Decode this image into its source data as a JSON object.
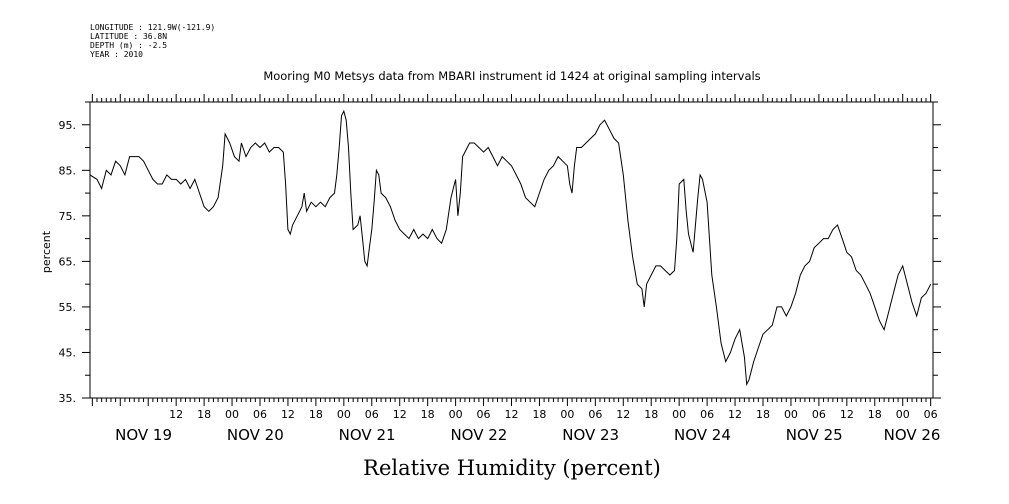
{
  "meta": {
    "longitude": "LONGITUDE : 121.9W(-121.9)",
    "latitude": "LATITUDE : 36.8N",
    "depth": "DEPTH (m) : -2.5",
    "year": "YEAR : 2010"
  },
  "chart_data": {
    "type": "line",
    "title": "Mooring M0 Metsys data from MBARI instrument id 1424 at original sampling intervals",
    "xlabel": "Relative Humidity (percent)",
    "ylabel": "percent",
    "ylim": [
      35,
      100
    ],
    "yticks": [
      35,
      45,
      55,
      65,
      75,
      85,
      95
    ],
    "ytick_labels": [
      "35.",
      "45.",
      "55.",
      "65.",
      "75.",
      "85.",
      "95."
    ],
    "x_unit": "hours since Nov 19 00:00, 2010",
    "xlim": [
      -6.5,
      174.5
    ],
    "hour_ticks": [
      {
        "x": 12,
        "label": "12"
      },
      {
        "x": 18,
        "label": "18"
      },
      {
        "x": 24,
        "label": "00"
      },
      {
        "x": 30,
        "label": "06"
      },
      {
        "x": 36,
        "label": "12"
      },
      {
        "x": 42,
        "label": "18"
      },
      {
        "x": 48,
        "label": "00"
      },
      {
        "x": 54,
        "label": "06"
      },
      {
        "x": 60,
        "label": "12"
      },
      {
        "x": 66,
        "label": "18"
      },
      {
        "x": 72,
        "label": "00"
      },
      {
        "x": 78,
        "label": "06"
      },
      {
        "x": 84,
        "label": "12"
      },
      {
        "x": 90,
        "label": "18"
      },
      {
        "x": 96,
        "label": "00"
      },
      {
        "x": 102,
        "label": "06"
      },
      {
        "x": 108,
        "label": "12"
      },
      {
        "x": 114,
        "label": "18"
      },
      {
        "x": 120,
        "label": "00"
      },
      {
        "x": 126,
        "label": "06"
      },
      {
        "x": 132,
        "label": "12"
      },
      {
        "x": 138,
        "label": "18"
      },
      {
        "x": 144,
        "label": "00"
      },
      {
        "x": 150,
        "label": "06"
      },
      {
        "x": 156,
        "label": "12"
      },
      {
        "x": 162,
        "label": "18"
      },
      {
        "x": 168,
        "label": "00"
      },
      {
        "x": 174,
        "label": "06"
      }
    ],
    "day_labels": [
      {
        "x": 5,
        "label": "NOV 19"
      },
      {
        "x": 29,
        "label": "NOV 20"
      },
      {
        "x": 53,
        "label": "NOV 21"
      },
      {
        "x": 77,
        "label": "NOV 22"
      },
      {
        "x": 101,
        "label": "NOV 23"
      },
      {
        "x": 125,
        "label": "NOV 24"
      },
      {
        "x": 149,
        "label": "NOV 25"
      },
      {
        "x": 170,
        "label": "NOV 26"
      }
    ],
    "series": [
      {
        "color": "#000000",
        "points": [
          [
            -6.5,
            84
          ],
          [
            -5,
            83
          ],
          [
            -4,
            81
          ],
          [
            -3,
            85
          ],
          [
            -2,
            84
          ],
          [
            -1,
            87
          ],
          [
            0,
            86
          ],
          [
            1,
            84
          ],
          [
            2,
            88
          ],
          [
            3,
            88
          ],
          [
            4,
            88
          ],
          [
            5,
            87
          ],
          [
            6,
            85
          ],
          [
            7,
            83
          ],
          [
            8,
            82
          ],
          [
            9,
            82
          ],
          [
            10,
            84
          ],
          [
            11,
            83
          ],
          [
            12,
            83
          ],
          [
            13,
            82
          ],
          [
            14,
            83
          ],
          [
            15,
            81
          ],
          [
            16,
            83
          ],
          [
            17,
            80
          ],
          [
            18,
            77
          ],
          [
            19,
            76
          ],
          [
            20,
            77
          ],
          [
            21,
            79
          ],
          [
            22,
            86
          ],
          [
            22.5,
            93
          ],
          [
            23.5,
            91
          ],
          [
            24.5,
            88
          ],
          [
            25.5,
            87
          ],
          [
            26,
            91
          ],
          [
            27,
            88
          ],
          [
            28,
            90
          ],
          [
            29,
            91
          ],
          [
            30,
            90
          ],
          [
            31,
            91
          ],
          [
            32,
            89
          ],
          [
            33,
            90
          ],
          [
            34,
            90
          ],
          [
            35,
            89
          ],
          [
            35.5,
            82
          ],
          [
            36,
            72
          ],
          [
            36.5,
            71
          ],
          [
            37,
            73
          ],
          [
            38,
            75
          ],
          [
            39,
            77
          ],
          [
            39.5,
            80
          ],
          [
            40,
            76
          ],
          [
            41,
            78
          ],
          [
            42,
            77
          ],
          [
            43,
            78
          ],
          [
            44,
            77
          ],
          [
            45,
            79
          ],
          [
            46,
            80
          ],
          [
            46.5,
            84
          ],
          [
            47,
            90
          ],
          [
            47.5,
            97
          ],
          [
            48,
            98
          ],
          [
            48.5,
            96
          ],
          [
            49,
            90
          ],
          [
            49.5,
            80
          ],
          [
            50,
            72
          ],
          [
            51,
            73
          ],
          [
            51.5,
            75
          ],
          [
            52,
            70
          ],
          [
            52.5,
            65
          ],
          [
            53,
            64
          ],
          [
            53.5,
            68
          ],
          [
            54,
            72
          ],
          [
            54.5,
            78
          ],
          [
            55,
            85
          ],
          [
            55.5,
            84
          ],
          [
            56,
            80
          ],
          [
            57,
            79
          ],
          [
            58,
            77
          ],
          [
            59,
            74
          ],
          [
            60,
            72
          ],
          [
            61,
            71
          ],
          [
            62,
            70
          ],
          [
            63,
            72
          ],
          [
            64,
            70
          ],
          [
            65,
            71
          ],
          [
            66,
            70
          ],
          [
            67,
            72
          ],
          [
            68,
            70
          ],
          [
            69,
            69
          ],
          [
            70,
            72
          ],
          [
            71,
            79
          ],
          [
            72,
            83
          ],
          [
            72.5,
            75
          ],
          [
            73,
            80
          ],
          [
            73.5,
            88
          ],
          [
            74,
            89
          ],
          [
            75,
            91
          ],
          [
            76,
            91
          ],
          [
            77,
            90
          ],
          [
            78,
            89
          ],
          [
            79,
            90
          ],
          [
            80,
            88
          ],
          [
            81,
            86
          ],
          [
            82,
            88
          ],
          [
            83,
            87
          ],
          [
            84,
            86
          ],
          [
            85,
            84
          ],
          [
            86,
            82
          ],
          [
            87,
            79
          ],
          [
            88,
            78
          ],
          [
            89,
            77
          ],
          [
            90,
            80
          ],
          [
            91,
            83
          ],
          [
            92,
            85
          ],
          [
            93,
            86
          ],
          [
            94,
            88
          ],
          [
            95,
            87
          ],
          [
            96,
            86
          ],
          [
            96.5,
            82
          ],
          [
            97,
            80
          ],
          [
            97.5,
            86
          ],
          [
            98,
            90
          ],
          [
            99,
            90
          ],
          [
            100,
            91
          ],
          [
            101,
            92
          ],
          [
            102,
            93
          ],
          [
            103,
            95
          ],
          [
            104,
            96
          ],
          [
            105,
            94
          ],
          [
            106,
            92
          ],
          [
            107,
            91
          ],
          [
            108,
            84
          ],
          [
            109,
            74
          ],
          [
            110,
            66
          ],
          [
            111,
            60
          ],
          [
            112,
            59
          ],
          [
            112.5,
            55
          ],
          [
            113,
            60
          ],
          [
            114,
            62
          ],
          [
            115,
            64
          ],
          [
            116,
            64
          ],
          [
            117,
            63
          ],
          [
            118,
            62
          ],
          [
            119,
            63
          ],
          [
            119.5,
            70
          ],
          [
            120,
            82
          ],
          [
            121,
            83
          ],
          [
            121.5,
            76
          ],
          [
            122,
            71
          ],
          [
            123,
            67
          ],
          [
            124,
            79
          ],
          [
            124.5,
            84
          ],
          [
            125,
            83
          ],
          [
            126,
            78
          ],
          [
            127,
            62
          ],
          [
            128,
            55
          ],
          [
            129,
            47
          ],
          [
            130,
            43
          ],
          [
            131,
            45
          ],
          [
            132,
            48
          ],
          [
            133,
            50
          ],
          [
            134,
            44
          ],
          [
            134.5,
            38
          ],
          [
            135,
            39
          ],
          [
            136,
            43
          ],
          [
            137,
            46
          ],
          [
            138,
            49
          ],
          [
            139,
            50
          ],
          [
            140,
            51
          ],
          [
            141,
            55
          ],
          [
            142,
            55
          ],
          [
            143,
            53
          ],
          [
            144,
            55
          ],
          [
            145,
            58
          ],
          [
            146,
            62
          ],
          [
            147,
            64
          ],
          [
            148,
            65
          ],
          [
            149,
            68
          ],
          [
            150,
            69
          ],
          [
            151,
            70
          ],
          [
            152,
            70
          ],
          [
            153,
            72
          ],
          [
            154,
            73
          ],
          [
            155,
            70
          ],
          [
            156,
            67
          ],
          [
            157,
            66
          ],
          [
            158,
            63
          ],
          [
            159,
            62
          ],
          [
            160,
            60
          ],
          [
            161,
            58
          ],
          [
            162,
            55
          ],
          [
            163,
            52
          ],
          [
            164,
            50
          ],
          [
            165,
            54
          ],
          [
            166,
            58
          ],
          [
            167,
            62
          ],
          [
            168,
            64
          ],
          [
            169,
            60
          ],
          [
            170,
            56
          ],
          [
            171,
            53
          ],
          [
            172,
            57
          ],
          [
            173,
            58
          ],
          [
            174,
            60
          ]
        ]
      }
    ]
  }
}
